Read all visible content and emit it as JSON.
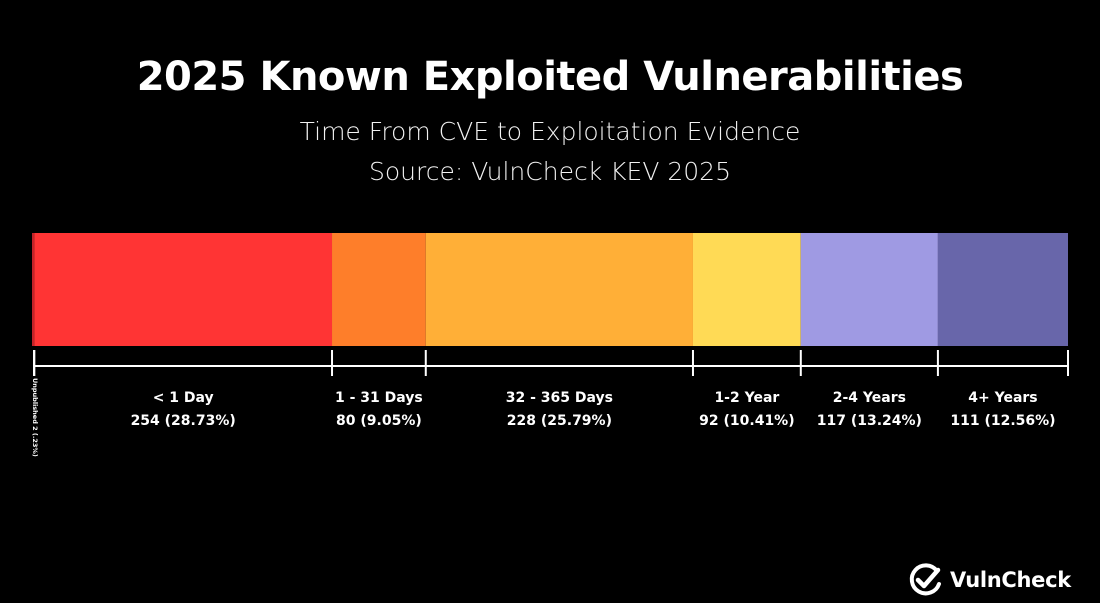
{
  "chart_data": {
    "type": "bar",
    "title": "2025 Known Exploited Vulnerabilities",
    "subtitle": "Time From CVE to Exploitation Evidence",
    "source": "Source: VulnCheck KEV 2025",
    "segments": [
      {
        "label": "Unpublished",
        "count": 2,
        "percent": 0.23,
        "display": "Unpublished 2 (.23%)",
        "color": "#c42228"
      },
      {
        "label": "< 1 Day",
        "count": 254,
        "percent": 28.73,
        "display": "254 (28.73%)",
        "color": "#ff3434"
      },
      {
        "label": "1 - 31 Days",
        "count": 80,
        "percent": 9.05,
        "display": "80 (9.05%)",
        "color": "#fe7e2a"
      },
      {
        "label": "32 - 365 Days",
        "count": 228,
        "percent": 25.79,
        "display": "228 (25.79%)",
        "color": "#ffaf37"
      },
      {
        "label": "1-2 Year",
        "count": 92,
        "percent": 10.41,
        "display": "92 (10.41%)",
        "color": "#ffda55"
      },
      {
        "label": "2-4 Years",
        "count": 117,
        "percent": 13.24,
        "display": "117 (13.24%)",
        "color": "#9f9ae3"
      },
      {
        "label": "4+ Years",
        "count": 111,
        "percent": 12.56,
        "display": "111 (12.56%)",
        "color": "#6866aa"
      }
    ]
  },
  "brand": {
    "name": "VulnCheck",
    "icon": "checkmark-badge-icon"
  }
}
